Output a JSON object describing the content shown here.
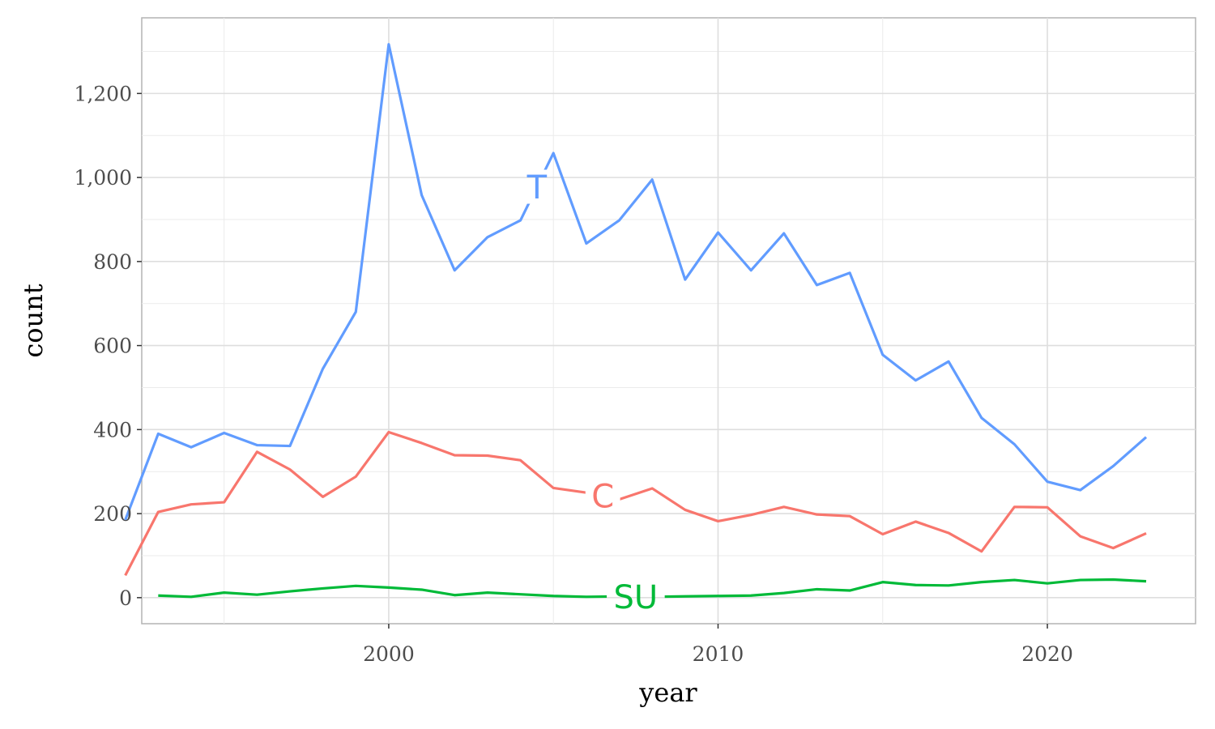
{
  "chart_data": {
    "type": "line",
    "xlabel": "year",
    "ylabel": "count",
    "xlim": [
      1992.5,
      2024.5
    ],
    "ylim": [
      -62,
      1380
    ],
    "x_ticks": [
      2000,
      2010,
      2020
    ],
    "x_tick_labels": [
      "2000",
      "2010",
      "2020"
    ],
    "y_ticks": [
      0,
      200,
      400,
      600,
      800,
      1000,
      1200
    ],
    "y_tick_labels": [
      "0",
      "200",
      "400",
      "600",
      "800",
      "1,000",
      "1,200"
    ],
    "grid": true,
    "legend": "direct labels on lines",
    "series": [
      {
        "label": "T",
        "color": "#619CFF",
        "label_at": 2004.5,
        "x": [
          1992,
          1993,
          1994,
          1995,
          1996,
          1997,
          1998,
          1999,
          2000,
          2001,
          2002,
          2003,
          2004,
          2005,
          2006,
          2007,
          2008,
          2009,
          2010,
          2011,
          2012,
          2013,
          2014,
          2015,
          2016,
          2017,
          2018,
          2019,
          2020,
          2021,
          2022,
          2023
        ],
        "y": [
          185,
          390,
          358,
          392,
          363,
          361,
          545,
          680,
          1317,
          958,
          779,
          858,
          898,
          1058,
          843,
          898,
          995,
          757,
          869,
          779,
          867,
          744,
          773,
          578,
          517,
          562,
          428,
          365,
          276,
          256,
          313,
          382
        ]
      },
      {
        "label": "C",
        "color": "#F8766D",
        "label_at": 2006.5,
        "x": [
          1992,
          1993,
          1994,
          1995,
          1996,
          1997,
          1998,
          1999,
          2000,
          2001,
          2002,
          2003,
          2004,
          2005,
          2006,
          2007,
          2008,
          2009,
          2010,
          2011,
          2012,
          2013,
          2014,
          2015,
          2016,
          2017,
          2018,
          2019,
          2020,
          2021,
          2022,
          2023
        ],
        "y": [
          53,
          204,
          222,
          227,
          347,
          305,
          240,
          288,
          394,
          368,
          339,
          338,
          327,
          261,
          250,
          234,
          260,
          209,
          182,
          197,
          216,
          198,
          194,
          151,
          181,
          154,
          110,
          216,
          215,
          146,
          118,
          153
        ]
      },
      {
        "label": "SU",
        "color": "#00BA38",
        "label_at": 2007.5,
        "x": [
          1993,
          1994,
          1995,
          1996,
          1997,
          1998,
          1999,
          2000,
          2001,
          2002,
          2003,
          2004,
          2005,
          2006,
          2007,
          2008,
          2009,
          2010,
          2011,
          2012,
          2013,
          2014,
          2015,
          2016,
          2017,
          2018,
          2019,
          2020,
          2021,
          2022,
          2023
        ],
        "y": [
          5,
          2,
          12,
          7,
          15,
          22,
          28,
          24,
          19,
          6,
          12,
          8,
          4,
          2,
          3,
          2,
          3,
          4,
          5,
          11,
          20,
          17,
          37,
          30,
          29,
          37,
          42,
          34,
          42,
          43,
          39
        ]
      }
    ]
  }
}
